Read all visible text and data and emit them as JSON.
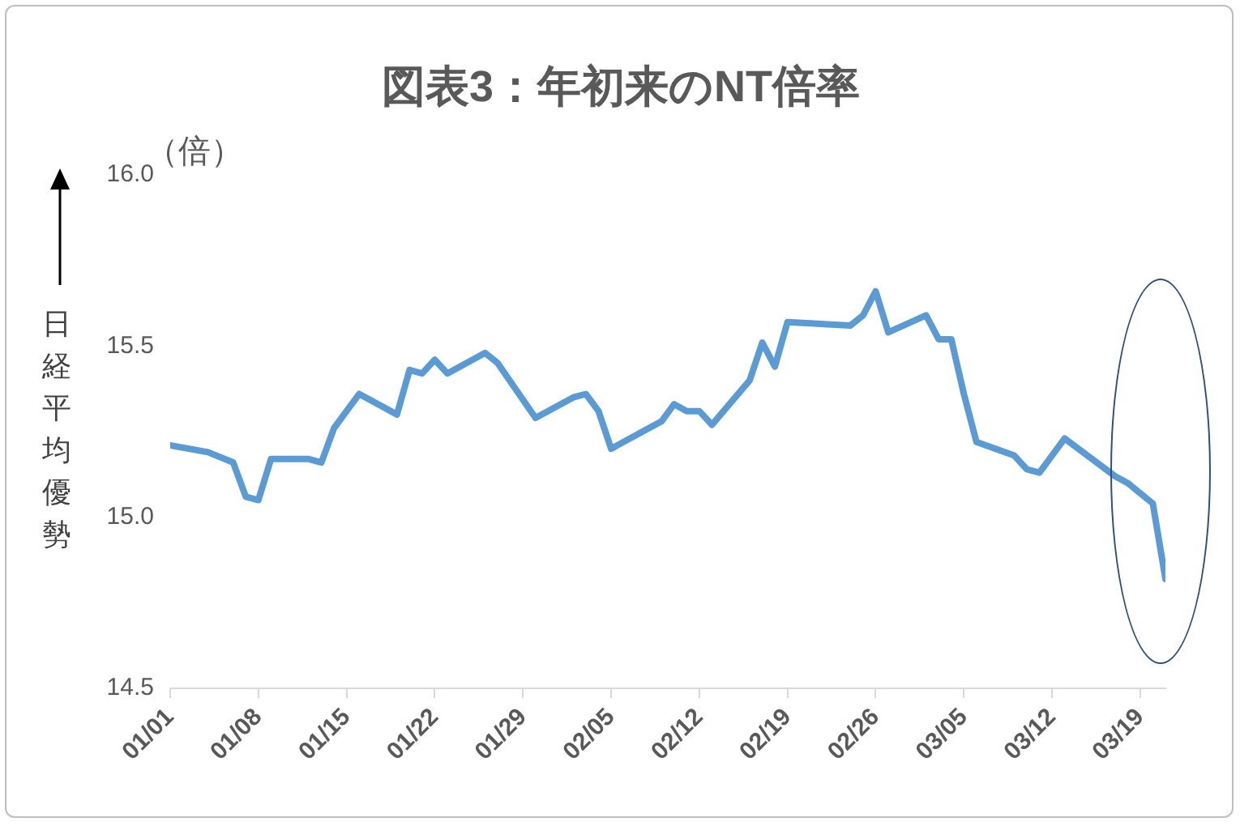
{
  "chart_data": {
    "type": "line",
    "title": "図表3：年初来のNT倍率",
    "ylabel": "日経平均優勢",
    "annotations": [
      "（倍）"
    ],
    "x": [
      "--01-01",
      "--01-04",
      "--01-06",
      "--01-07",
      "--01-08",
      "--01-09",
      "--01-12",
      "--01-13",
      "--01-14",
      "--01-15",
      "--01-16",
      "--01-19",
      "--01-20",
      "--01-21",
      "--01-22",
      "--01-23",
      "--01-26",
      "--01-27",
      "--01-30",
      "--02-02",
      "--02-03",
      "--02-04",
      "--02-05",
      "--02-09",
      "--02-10",
      "--02-11",
      "--02-12",
      "--02-13",
      "--02-16",
      "--02-17",
      "--02-18",
      "--02-19",
      "--02-24",
      "--02-25",
      "--02-26",
      "--02-27",
      "--03-02",
      "--03-03",
      "--03-04",
      "--03-05",
      "--03-06",
      "--03-09",
      "--03-10",
      "--03-11",
      "--03-13",
      "--03-17",
      "--03-18",
      "--03-20",
      "--03-21"
    ],
    "series": [
      {
        "color": "#5b9bd5",
        "values": [
          15.21,
          15.19,
          15.16,
          15.06,
          15.05,
          15.17,
          15.17,
          15.16,
          15.26,
          15.31,
          15.36,
          15.3,
          15.43,
          15.42,
          15.46,
          15.42,
          15.48,
          15.45,
          15.29,
          15.35,
          15.36,
          15.31,
          15.2,
          15.28,
          15.33,
          15.31,
          15.31,
          15.27,
          15.4,
          15.51,
          15.44,
          15.57,
          15.56,
          15.59,
          15.66,
          15.54,
          15.59,
          15.52,
          15.52,
          15.36,
          15.22,
          15.18,
          15.14,
          15.13,
          15.23,
          15.12,
          15.1,
          15.04,
          14.82
        ]
      }
    ],
    "xlim": [
      "--01-01",
      "--03-21"
    ],
    "xticks": [
      {
        "value": "--01-01",
        "label": "01/01"
      },
      {
        "value": "--01-08",
        "label": "01/08"
      },
      {
        "value": "--01-15",
        "label": "01/15"
      },
      {
        "value": "--01-22",
        "label": "01/22"
      },
      {
        "value": "--01-29",
        "label": "01/29"
      },
      {
        "value": "--02-05",
        "label": "02/05"
      },
      {
        "value": "--02-12",
        "label": "02/12"
      },
      {
        "value": "--02-19",
        "label": "02/19"
      },
      {
        "value": "--02-26",
        "label": "02/26"
      },
      {
        "value": "--03-05",
        "label": "03/05"
      },
      {
        "value": "--03-12",
        "label": "03/12"
      },
      {
        "value": "--03-19",
        "label": "03/19"
      }
    ],
    "ylim": [
      14.5,
      16
    ],
    "yticks": [
      {
        "value": 14.5,
        "label": "14.5"
      },
      {
        "value": 15,
        "label": "15.0"
      },
      {
        "value": 15.5,
        "label": "15.5"
      },
      {
        "value": 16,
        "label": "16.0"
      }
    ],
    "grid": false,
    "legend": false,
    "marker": "none",
    "line_style": "solid"
  }
}
